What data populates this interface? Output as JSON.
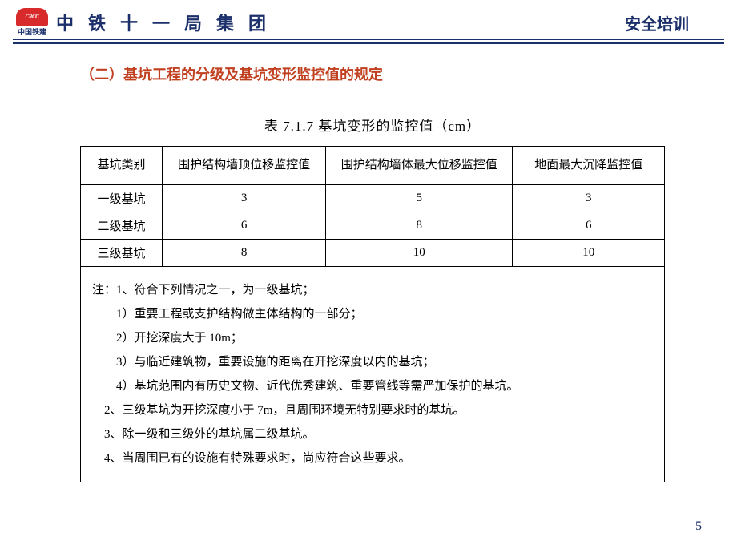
{
  "header": {
    "logo_text": "CRCC",
    "logo_sub": "中国铁建",
    "org_title": "中铁十一局集团",
    "right_text": "安全培训"
  },
  "section_title": "（二）基坑工程的分级及基坑变形监控值的规定",
  "table": {
    "title": "表 7.1.7   基坑变形的监控值（cm）",
    "columns": [
      "基坑类别",
      "围护结构墙顶位移监控值",
      "围护结构墙体最大位移监控值",
      "地面最大沉降监控值"
    ],
    "rows": [
      [
        "一级基坑",
        "3",
        "5",
        "3"
      ],
      [
        "二级基坑",
        "6",
        "8",
        "6"
      ],
      [
        "三级基坑",
        "8",
        "10",
        "10"
      ]
    ],
    "col_widths_pct": [
      14,
      28,
      32,
      26
    ],
    "border_color": "#000000",
    "font_size_pt": 12
  },
  "notes": {
    "lines": [
      "注：1、符合下列情况之一，为一级基坑；",
      "        1）重要工程或支护结构做主体结构的一部分；",
      "        2）开挖深度大于 10m；",
      "        3）与临近建筑物，重要设施的距离在开挖深度以内的基坑；",
      "        4）基坑范围内有历史文物、近代优秀建筑、重要管线等需严加保护的基坑。",
      "    2、三级基坑为开挖深度小于 7m，且周围环境无特别要求时的基坑。",
      "    3、除一级和三级外的基坑属二级基坑。",
      "    4、当周围已有的设施有特殊要求时，尚应符合这些要求。"
    ]
  },
  "page_number": "5",
  "colors": {
    "brand_blue": "#1b2f6a",
    "accent_red": "#c04020",
    "logo_red": "#d82a2a",
    "background": "#ffffff"
  }
}
